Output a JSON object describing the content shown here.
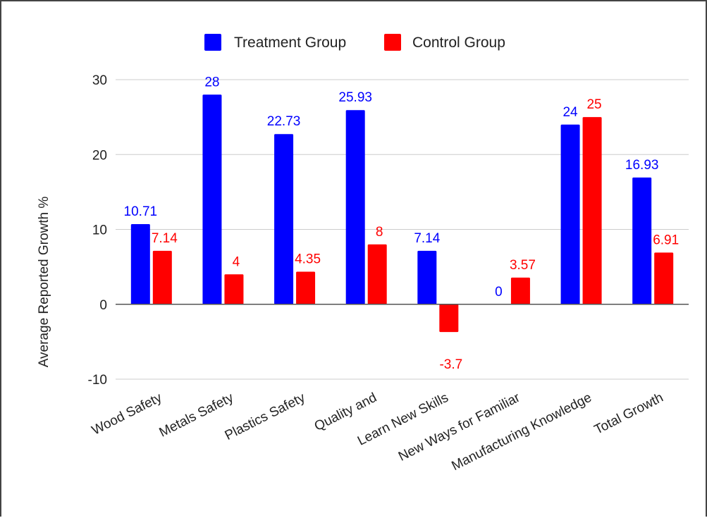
{
  "chart_data": {
    "type": "bar",
    "categories": [
      "Wood Safety",
      "Metals Safety",
      "Plastics Safety",
      "Quality and",
      "Learn New Skills",
      "New Ways for Familiar",
      "Manufacturing Knowledge",
      "Total Growth"
    ],
    "series": [
      {
        "name": "Treatment Group",
        "color": "#0000ff",
        "values": [
          10.71,
          28,
          22.73,
          25.93,
          7.14,
          0,
          24,
          16.93
        ],
        "labels": [
          "10.71",
          "28",
          "22.73",
          "25.93",
          "7.14",
          "0",
          "24",
          "16.93"
        ]
      },
      {
        "name": "Control Group",
        "color": "#ff0000",
        "values": [
          7.14,
          4,
          4.35,
          8,
          -3.7,
          3.57,
          25,
          6.91
        ],
        "labels": [
          "7.14",
          "4",
          "4.35",
          "8",
          "-3.7",
          "3.57",
          "25",
          "6.91"
        ]
      }
    ],
    "ylabel": "Average Reported Growth %",
    "ylim": [
      -10,
      30
    ],
    "yticks": [
      "-10",
      "0",
      "10",
      "20",
      "30"
    ],
    "grid": true,
    "legend_position": "top"
  }
}
